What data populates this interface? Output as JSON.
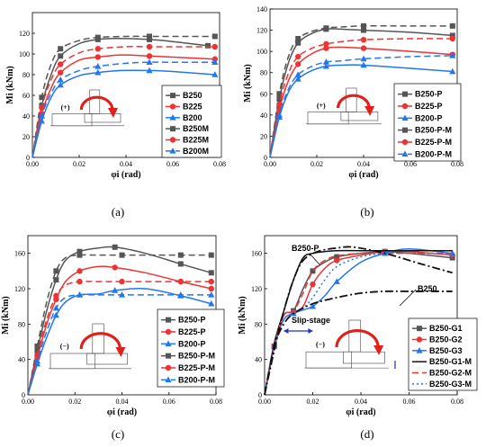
{
  "chart_data": [
    {
      "type": "line",
      "caption": "(a)",
      "xlabel": "φi (rad)",
      "ylabel": "Mi (kNm)",
      "xlim": [
        0,
        0.08
      ],
      "ylim": [
        0,
        140
      ],
      "xticks": [
        "0.00",
        "0.02",
        "0.04",
        "0.06",
        "0.08"
      ],
      "yticks": [
        "0",
        "20",
        "40",
        "60",
        "80",
        "100",
        "120"
      ],
      "inset_sign": "(+)",
      "legend_position": "center-right",
      "series": [
        {
          "name": "B250",
          "color": "#555555",
          "dash": "",
          "marker": "square",
          "x": [
            0,
            0.004,
            0.008,
            0.012,
            0.02,
            0.028,
            0.036,
            0.05,
            0.06,
            0.075
          ],
          "y": [
            0,
            50,
            80,
            98,
            110,
            114,
            115,
            114,
            112,
            108
          ]
        },
        {
          "name": "B225",
          "color": "#ee3333",
          "dash": "",
          "marker": "circle",
          "x": [
            0,
            0.004,
            0.008,
            0.012,
            0.02,
            0.028,
            0.038,
            0.05,
            0.06,
            0.078
          ],
          "y": [
            0,
            42,
            67,
            82,
            94,
            97,
            99,
            98,
            97,
            95
          ]
        },
        {
          "name": "B200",
          "color": "#2277ee",
          "dash": "",
          "marker": "triangle",
          "x": [
            0,
            0.004,
            0.008,
            0.012,
            0.02,
            0.028,
            0.038,
            0.05,
            0.06,
            0.078
          ],
          "y": [
            0,
            35,
            58,
            70,
            79,
            82,
            84,
            84,
            83,
            80
          ]
        },
        {
          "name": "B250M",
          "color": "#555555",
          "dash": "7,4",
          "marker": "square",
          "x": [
            0,
            0.004,
            0.008,
            0.012,
            0.02,
            0.028,
            0.04,
            0.05,
            0.06,
            0.078
          ],
          "y": [
            0,
            58,
            90,
            105,
            113,
            116,
            117,
            117,
            117,
            117
          ]
        },
        {
          "name": "B225M",
          "color": "#ee3333",
          "dash": "7,4",
          "marker": "circle",
          "x": [
            0,
            0.004,
            0.008,
            0.012,
            0.02,
            0.028,
            0.04,
            0.05,
            0.06,
            0.078
          ],
          "y": [
            0,
            48,
            75,
            90,
            101,
            105,
            107,
            107,
            107,
            107
          ]
        },
        {
          "name": "B200M",
          "color": "#2277ee",
          "dash": "7,4",
          "marker": "triangle",
          "x": [
            0,
            0.004,
            0.008,
            0.012,
            0.02,
            0.028,
            0.04,
            0.05,
            0.06,
            0.078
          ],
          "y": [
            0,
            40,
            62,
            75,
            84,
            88,
            91,
            92,
            92,
            92
          ]
        }
      ]
    },
    {
      "type": "line",
      "caption": "(b)",
      "xlabel": "φi (rad)",
      "ylabel": "Mi (kNm)",
      "xlim": [
        0,
        0.08
      ],
      "ylim": [
        0,
        140
      ],
      "xticks": [
        "0.00",
        "0.02",
        "0.04",
        "0.06",
        "0.08"
      ],
      "yticks": [
        "0",
        "20",
        "40",
        "60",
        "80",
        "100",
        "120",
        "140"
      ],
      "inset_sign": "(+)",
      "legend_position": "center-right",
      "series": [
        {
          "name": "B250-P",
          "color": "#555555",
          "dash": "",
          "marker": "square",
          "x": [
            0,
            0.004,
            0.008,
            0.012,
            0.018,
            0.024,
            0.03,
            0.04,
            0.06,
            0.078
          ],
          "y": [
            0,
            55,
            90,
            108,
            117,
            121,
            121,
            120,
            118,
            115
          ]
        },
        {
          "name": "B225-P",
          "color": "#ee3333",
          "dash": "",
          "marker": "circle",
          "x": [
            0,
            0.004,
            0.008,
            0.012,
            0.018,
            0.024,
            0.03,
            0.04,
            0.06,
            0.078
          ],
          "y": [
            0,
            45,
            73,
            88,
            98,
            103,
            104,
            103,
            100,
            97
          ]
        },
        {
          "name": "B200-P",
          "color": "#2277ee",
          "dash": "",
          "marker": "triangle",
          "x": [
            0,
            0.004,
            0.008,
            0.012,
            0.018,
            0.024,
            0.03,
            0.04,
            0.06,
            0.078
          ],
          "y": [
            0,
            38,
            62,
            74,
            82,
            86,
            87,
            87,
            84,
            81
          ]
        },
        {
          "name": "B250-P-M",
          "color": "#555555",
          "dash": "7,4",
          "marker": "square",
          "x": [
            0,
            0.004,
            0.008,
            0.012,
            0.018,
            0.024,
            0.03,
            0.04,
            0.06,
            0.078
          ],
          "y": [
            0,
            60,
            96,
            112,
            119,
            122,
            123,
            124,
            124,
            124
          ]
        },
        {
          "name": "B225-P-M",
          "color": "#ee3333",
          "dash": "7,4",
          "marker": "circle",
          "x": [
            0,
            0.004,
            0.008,
            0.012,
            0.018,
            0.024,
            0.03,
            0.04,
            0.06,
            0.078
          ],
          "y": [
            0,
            50,
            80,
            95,
            103,
            107,
            109,
            111,
            112,
            112
          ]
        },
        {
          "name": "B200-P-M",
          "color": "#2277ee",
          "dash": "7,4",
          "marker": "triangle",
          "x": [
            0,
            0.004,
            0.008,
            0.012,
            0.018,
            0.024,
            0.03,
            0.04,
            0.06,
            0.078
          ],
          "y": [
            0,
            40,
            65,
            78,
            86,
            90,
            91,
            93,
            95,
            96
          ]
        }
      ]
    },
    {
      "type": "line",
      "caption": "(c)",
      "xlabel": "φi (rad)",
      "ylabel": "Mi (kNm)",
      "xlim": [
        0,
        0.08
      ],
      "ylim": [
        0,
        180
      ],
      "xticks": [
        "0.00",
        "0.02",
        "0.04",
        "0.06",
        "0.08"
      ],
      "yticks": [
        "0",
        "40",
        "80",
        "120",
        "160"
      ],
      "inset_sign": "(−)",
      "legend_position": "top-right",
      "series": [
        {
          "name": "B250-P",
          "color": "#555555",
          "dash": "",
          "marker": "square",
          "x": [
            0,
            0.004,
            0.008,
            0.012,
            0.016,
            0.022,
            0.03,
            0.037,
            0.05,
            0.065,
            0.078
          ],
          "y": [
            0,
            50,
            95,
            130,
            152,
            162,
            166,
            167,
            160,
            148,
            138
          ]
        },
        {
          "name": "B225-P",
          "color": "#ee3333",
          "dash": "",
          "marker": "circle",
          "x": [
            0,
            0.004,
            0.008,
            0.012,
            0.016,
            0.022,
            0.03,
            0.037,
            0.05,
            0.065,
            0.078
          ],
          "y": [
            0,
            42,
            80,
            108,
            128,
            140,
            145,
            144,
            138,
            128,
            120
          ]
        },
        {
          "name": "B200-P",
          "color": "#2277ee",
          "dash": "",
          "marker": "triangle",
          "x": [
            0,
            0.004,
            0.008,
            0.012,
            0.016,
            0.022,
            0.03,
            0.037,
            0.05,
            0.065,
            0.078
          ],
          "y": [
            0,
            35,
            65,
            90,
            105,
            113,
            114,
            118,
            120,
            112,
            103
          ]
        },
        {
          "name": "B250-P-M",
          "color": "#555555",
          "dash": "7,4",
          "marker": "square",
          "x": [
            0,
            0.004,
            0.008,
            0.012,
            0.016,
            0.022,
            0.03,
            0.04,
            0.05,
            0.065,
            0.078
          ],
          "y": [
            0,
            55,
            105,
            140,
            155,
            158,
            158,
            158,
            158,
            158,
            158
          ]
        },
        {
          "name": "B225-P-M",
          "color": "#ee3333",
          "dash": "7,4",
          "marker": "circle",
          "x": [
            0,
            0.004,
            0.008,
            0.012,
            0.016,
            0.022,
            0.03,
            0.04,
            0.05,
            0.065,
            0.078
          ],
          "y": [
            0,
            45,
            85,
            112,
            124,
            128,
            128,
            128,
            128,
            128,
            128
          ]
        },
        {
          "name": "B200-P-M",
          "color": "#2277ee",
          "dash": "7,4",
          "marker": "triangle",
          "x": [
            0,
            0.004,
            0.008,
            0.012,
            0.016,
            0.022,
            0.03,
            0.04,
            0.05,
            0.065,
            0.078
          ],
          "y": [
            0,
            38,
            72,
            98,
            110,
            113,
            113,
            113,
            113,
            113,
            113
          ]
        }
      ]
    },
    {
      "type": "line",
      "caption": "(d)",
      "xlabel": "φi (rad)",
      "ylabel": "Mi (kNm)",
      "xlim": [
        0,
        0.08
      ],
      "ylim": [
        0,
        180
      ],
      "xticks": [
        "0.00",
        "0.02",
        "0.04",
        "0.06",
        "0.08"
      ],
      "yticks": [
        "0",
        "40",
        "80",
        "120",
        "160"
      ],
      "inset_sign": "(−)",
      "legend_position": "bottom-right",
      "annotations": [
        "B250-P",
        "B250",
        "Slip-stage"
      ],
      "series": [
        {
          "name": "B250-G1",
          "color": "#555555",
          "dash": "",
          "marker": "square",
          "x": [
            0,
            0.004,
            0.008,
            0.012,
            0.016,
            0.02,
            0.025,
            0.03,
            0.04,
            0.05,
            0.06,
            0.078
          ],
          "y": [
            0,
            55,
            90,
            95,
            120,
            140,
            150,
            156,
            160,
            162,
            160,
            155
          ]
        },
        {
          "name": "B250-G2",
          "color": "#ee3333",
          "dash": "",
          "marker": "circle",
          "x": [
            0,
            0.004,
            0.008,
            0.012,
            0.016,
            0.02,
            0.025,
            0.03,
            0.04,
            0.05,
            0.06,
            0.078
          ],
          "y": [
            0,
            55,
            90,
            93,
            100,
            125,
            143,
            152,
            158,
            162,
            162,
            158
          ]
        },
        {
          "name": "B250-G3",
          "color": "#2277ee",
          "dash": "",
          "marker": "triangle",
          "x": [
            0,
            0.004,
            0.008,
            0.012,
            0.016,
            0.02,
            0.025,
            0.03,
            0.04,
            0.05,
            0.06,
            0.078
          ],
          "y": [
            0,
            55,
            85,
            92,
            96,
            100,
            112,
            128,
            150,
            160,
            165,
            160
          ]
        },
        {
          "name": "B250-G1-M",
          "color": "#111111",
          "dash": "",
          "marker": "none",
          "x": [
            0,
            0.004,
            0.008,
            0.012,
            0.016,
            0.02,
            0.025,
            0.03,
            0.04,
            0.05,
            0.06,
            0.078
          ],
          "y": [
            0,
            58,
            95,
            130,
            155,
            160,
            162,
            163,
            163,
            163,
            163,
            163
          ]
        },
        {
          "name": "B250-G2-M",
          "color": "#ee3333",
          "dash": "7,4",
          "marker": "none",
          "x": [
            0,
            0.004,
            0.008,
            0.012,
            0.016,
            0.02,
            0.025,
            0.03,
            0.04,
            0.05,
            0.06,
            0.078
          ],
          "y": [
            0,
            55,
            90,
            95,
            115,
            140,
            152,
            157,
            160,
            160,
            160,
            160
          ]
        },
        {
          "name": "B250-G3-M",
          "color": "#2277ee",
          "dash": "2,3",
          "marker": "none",
          "x": [
            0,
            0.004,
            0.008,
            0.012,
            0.016,
            0.02,
            0.025,
            0.03,
            0.04,
            0.05,
            0.06,
            0.078
          ],
          "y": [
            0,
            52,
            85,
            92,
            98,
            110,
            130,
            145,
            156,
            160,
            160,
            160
          ]
        },
        {
          "name": "B250-P",
          "color": "#111111",
          "dash": "9,3,2,3",
          "marker": "none",
          "legend": false,
          "x": [
            0,
            0.004,
            0.008,
            0.012,
            0.016,
            0.022,
            0.03,
            0.037,
            0.05,
            0.065,
            0.078
          ],
          "y": [
            0,
            50,
            95,
            130,
            152,
            162,
            166,
            167,
            160,
            148,
            138
          ]
        },
        {
          "name": "B250",
          "color": "#111111",
          "dash": "9,3,2,3",
          "marker": "none",
          "legend": false,
          "x": [
            0,
            0.004,
            0.008,
            0.012,
            0.02,
            0.03,
            0.04,
            0.05,
            0.06,
            0.078
          ],
          "y": [
            0,
            55,
            80,
            92,
            103,
            110,
            115,
            117,
            117,
            117
          ]
        }
      ]
    }
  ]
}
